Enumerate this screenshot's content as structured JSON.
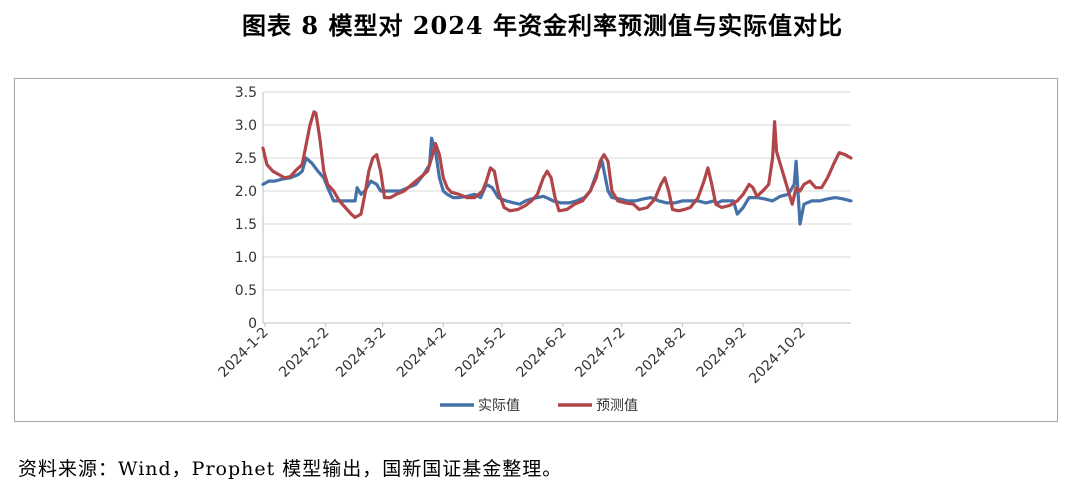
{
  "title": "图表 8  模型对 2024 年资金利率预测值与实际值对比",
  "source": "资料来源：Wind，Prophet 模型输出，国新国证基金整理。",
  "chart_data": {
    "type": "line",
    "ylim": [
      0,
      3.5
    ],
    "yticks": [
      "0",
      "0.5",
      "1.0",
      "1.5",
      "2.0",
      "2.5",
      "3.0",
      "3.5"
    ],
    "xticks": [
      "2024-1-2",
      "2024-2-2",
      "2024-3-2",
      "2024-4-2",
      "2024-5-2",
      "2024-6-2",
      "2024-7-2",
      "2024-8-2",
      "2024-9-2",
      "2024-10-2"
    ],
    "xtick_days": [
      1,
      32,
      61,
      92,
      122,
      153,
      183,
      214,
      245,
      275
    ],
    "x_start": "2024-1-1",
    "x_end_day": 300,
    "grid": true,
    "legend_position": "bottom",
    "series": [
      {
        "name": "实际值",
        "color": "#4472a8",
        "points": [
          [
            0,
            2.1
          ],
          [
            3,
            2.15
          ],
          [
            6,
            2.15
          ],
          [
            10,
            2.18
          ],
          [
            14,
            2.2
          ],
          [
            18,
            2.25
          ],
          [
            20,
            2.3
          ],
          [
            22,
            2.5
          ],
          [
            25,
            2.42
          ],
          [
            28,
            2.3
          ],
          [
            31,
            2.2
          ],
          [
            33,
            2.05
          ],
          [
            36,
            1.85
          ],
          [
            40,
            1.85
          ],
          [
            44,
            1.85
          ],
          [
            47,
            1.85
          ],
          [
            48,
            2.05
          ],
          [
            50,
            1.95
          ],
          [
            52,
            2.0
          ],
          [
            55,
            2.15
          ],
          [
            58,
            2.1
          ],
          [
            60,
            2.0
          ],
          [
            63,
            2.0
          ],
          [
            66,
            2.0
          ],
          [
            70,
            2.0
          ],
          [
            74,
            2.05
          ],
          [
            78,
            2.1
          ],
          [
            82,
            2.25
          ],
          [
            85,
            2.4
          ],
          [
            86,
            2.8
          ],
          [
            88,
            2.6
          ],
          [
            90,
            2.2
          ],
          [
            92,
            2.0
          ],
          [
            94,
            1.95
          ],
          [
            97,
            1.9
          ],
          [
            100,
            1.9
          ],
          [
            104,
            1.92
          ],
          [
            108,
            1.95
          ],
          [
            111,
            1.9
          ],
          [
            114,
            2.1
          ],
          [
            117,
            2.05
          ],
          [
            120,
            1.9
          ],
          [
            124,
            1.85
          ],
          [
            128,
            1.82
          ],
          [
            131,
            1.8
          ],
          [
            134,
            1.85
          ],
          [
            137,
            1.88
          ],
          [
            140,
            1.9
          ],
          [
            143,
            1.92
          ],
          [
            146,
            1.88
          ],
          [
            148,
            1.85
          ],
          [
            152,
            1.82
          ],
          [
            156,
            1.82
          ],
          [
            160,
            1.85
          ],
          [
            164,
            1.9
          ],
          [
            167,
            2.0
          ],
          [
            170,
            2.25
          ],
          [
            173,
            2.45
          ],
          [
            176,
            2.0
          ],
          [
            178,
            1.9
          ],
          [
            182,
            1.88
          ],
          [
            186,
            1.85
          ],
          [
            190,
            1.85
          ],
          [
            194,
            1.88
          ],
          [
            198,
            1.9
          ],
          [
            202,
            1.85
          ],
          [
            206,
            1.82
          ],
          [
            210,
            1.82
          ],
          [
            214,
            1.85
          ],
          [
            218,
            1.85
          ],
          [
            222,
            1.85
          ],
          [
            226,
            1.82
          ],
          [
            230,
            1.85
          ],
          [
            232,
            1.82
          ],
          [
            234,
            1.85
          ],
          [
            238,
            1.85
          ],
          [
            240,
            1.85
          ],
          [
            242,
            1.65
          ],
          [
            245,
            1.75
          ],
          [
            248,
            1.9
          ],
          [
            252,
            1.9
          ],
          [
            256,
            1.88
          ],
          [
            260,
            1.85
          ],
          [
            264,
            1.92
          ],
          [
            268,
            1.95
          ],
          [
            271,
            2.1
          ],
          [
            272,
            2.45
          ],
          [
            274,
            1.5
          ],
          [
            276,
            1.8
          ],
          [
            280,
            1.85
          ],
          [
            284,
            1.85
          ],
          [
            288,
            1.88
          ],
          [
            292,
            1.9
          ],
          [
            296,
            1.88
          ],
          [
            300,
            1.85
          ]
        ]
      },
      {
        "name": "预测值",
        "color": "#b0454a",
        "points": [
          [
            0,
            2.65
          ],
          [
            2,
            2.4
          ],
          [
            5,
            2.3
          ],
          [
            8,
            2.25
          ],
          [
            11,
            2.2
          ],
          [
            14,
            2.22
          ],
          [
            17,
            2.32
          ],
          [
            20,
            2.4
          ],
          [
            22,
            2.7
          ],
          [
            24,
            3.0
          ],
          [
            26,
            3.2
          ],
          [
            27,
            3.18
          ],
          [
            29,
            2.8
          ],
          [
            31,
            2.3
          ],
          [
            33,
            2.1
          ],
          [
            36,
            2.0
          ],
          [
            39,
            1.85
          ],
          [
            42,
            1.75
          ],
          [
            45,
            1.65
          ],
          [
            47,
            1.6
          ],
          [
            50,
            1.65
          ],
          [
            52,
            1.95
          ],
          [
            54,
            2.3
          ],
          [
            56,
            2.5
          ],
          [
            58,
            2.55
          ],
          [
            60,
            2.3
          ],
          [
            62,
            1.9
          ],
          [
            65,
            1.9
          ],
          [
            68,
            1.95
          ],
          [
            72,
            2.0
          ],
          [
            76,
            2.1
          ],
          [
            80,
            2.2
          ],
          [
            84,
            2.3
          ],
          [
            86,
            2.5
          ],
          [
            88,
            2.72
          ],
          [
            90,
            2.55
          ],
          [
            92,
            2.2
          ],
          [
            94,
            2.05
          ],
          [
            96,
            1.98
          ],
          [
            100,
            1.95
          ],
          [
            104,
            1.9
          ],
          [
            108,
            1.9
          ],
          [
            112,
            2.0
          ],
          [
            114,
            2.15
          ],
          [
            116,
            2.35
          ],
          [
            118,
            2.3
          ],
          [
            120,
            2.0
          ],
          [
            123,
            1.75
          ],
          [
            126,
            1.7
          ],
          [
            130,
            1.72
          ],
          [
            134,
            1.78
          ],
          [
            137,
            1.85
          ],
          [
            140,
            1.95
          ],
          [
            143,
            2.2
          ],
          [
            145,
            2.3
          ],
          [
            147,
            2.2
          ],
          [
            149,
            1.9
          ],
          [
            151,
            1.7
          ],
          [
            155,
            1.72
          ],
          [
            159,
            1.8
          ],
          [
            163,
            1.85
          ],
          [
            167,
            2.0
          ],
          [
            170,
            2.2
          ],
          [
            172,
            2.45
          ],
          [
            174,
            2.55
          ],
          [
            176,
            2.45
          ],
          [
            178,
            2.0
          ],
          [
            181,
            1.85
          ],
          [
            185,
            1.82
          ],
          [
            189,
            1.8
          ],
          [
            192,
            1.72
          ],
          [
            196,
            1.75
          ],
          [
            200,
            1.88
          ],
          [
            203,
            2.1
          ],
          [
            205,
            2.2
          ],
          [
            207,
            2.0
          ],
          [
            209,
            1.72
          ],
          [
            212,
            1.7
          ],
          [
            215,
            1.72
          ],
          [
            218,
            1.75
          ],
          [
            222,
            1.9
          ],
          [
            225,
            2.15
          ],
          [
            227,
            2.35
          ],
          [
            229,
            2.1
          ],
          [
            231,
            1.8
          ],
          [
            234,
            1.75
          ],
          [
            238,
            1.78
          ],
          [
            242,
            1.85
          ],
          [
            245,
            1.95
          ],
          [
            248,
            2.1
          ],
          [
            250,
            2.05
          ],
          [
            252,
            1.92
          ],
          [
            255,
            2.0
          ],
          [
            258,
            2.1
          ],
          [
            260,
            2.5
          ],
          [
            261,
            3.05
          ],
          [
            262,
            2.6
          ],
          [
            265,
            2.3
          ],
          [
            268,
            2.0
          ],
          [
            270,
            1.8
          ],
          [
            272,
            2.05
          ],
          [
            274,
            2.0
          ],
          [
            276,
            2.1
          ],
          [
            279,
            2.15
          ],
          [
            282,
            2.05
          ],
          [
            285,
            2.05
          ],
          [
            288,
            2.2
          ],
          [
            291,
            2.4
          ],
          [
            294,
            2.58
          ],
          [
            297,
            2.55
          ],
          [
            300,
            2.5
          ]
        ]
      }
    ]
  }
}
